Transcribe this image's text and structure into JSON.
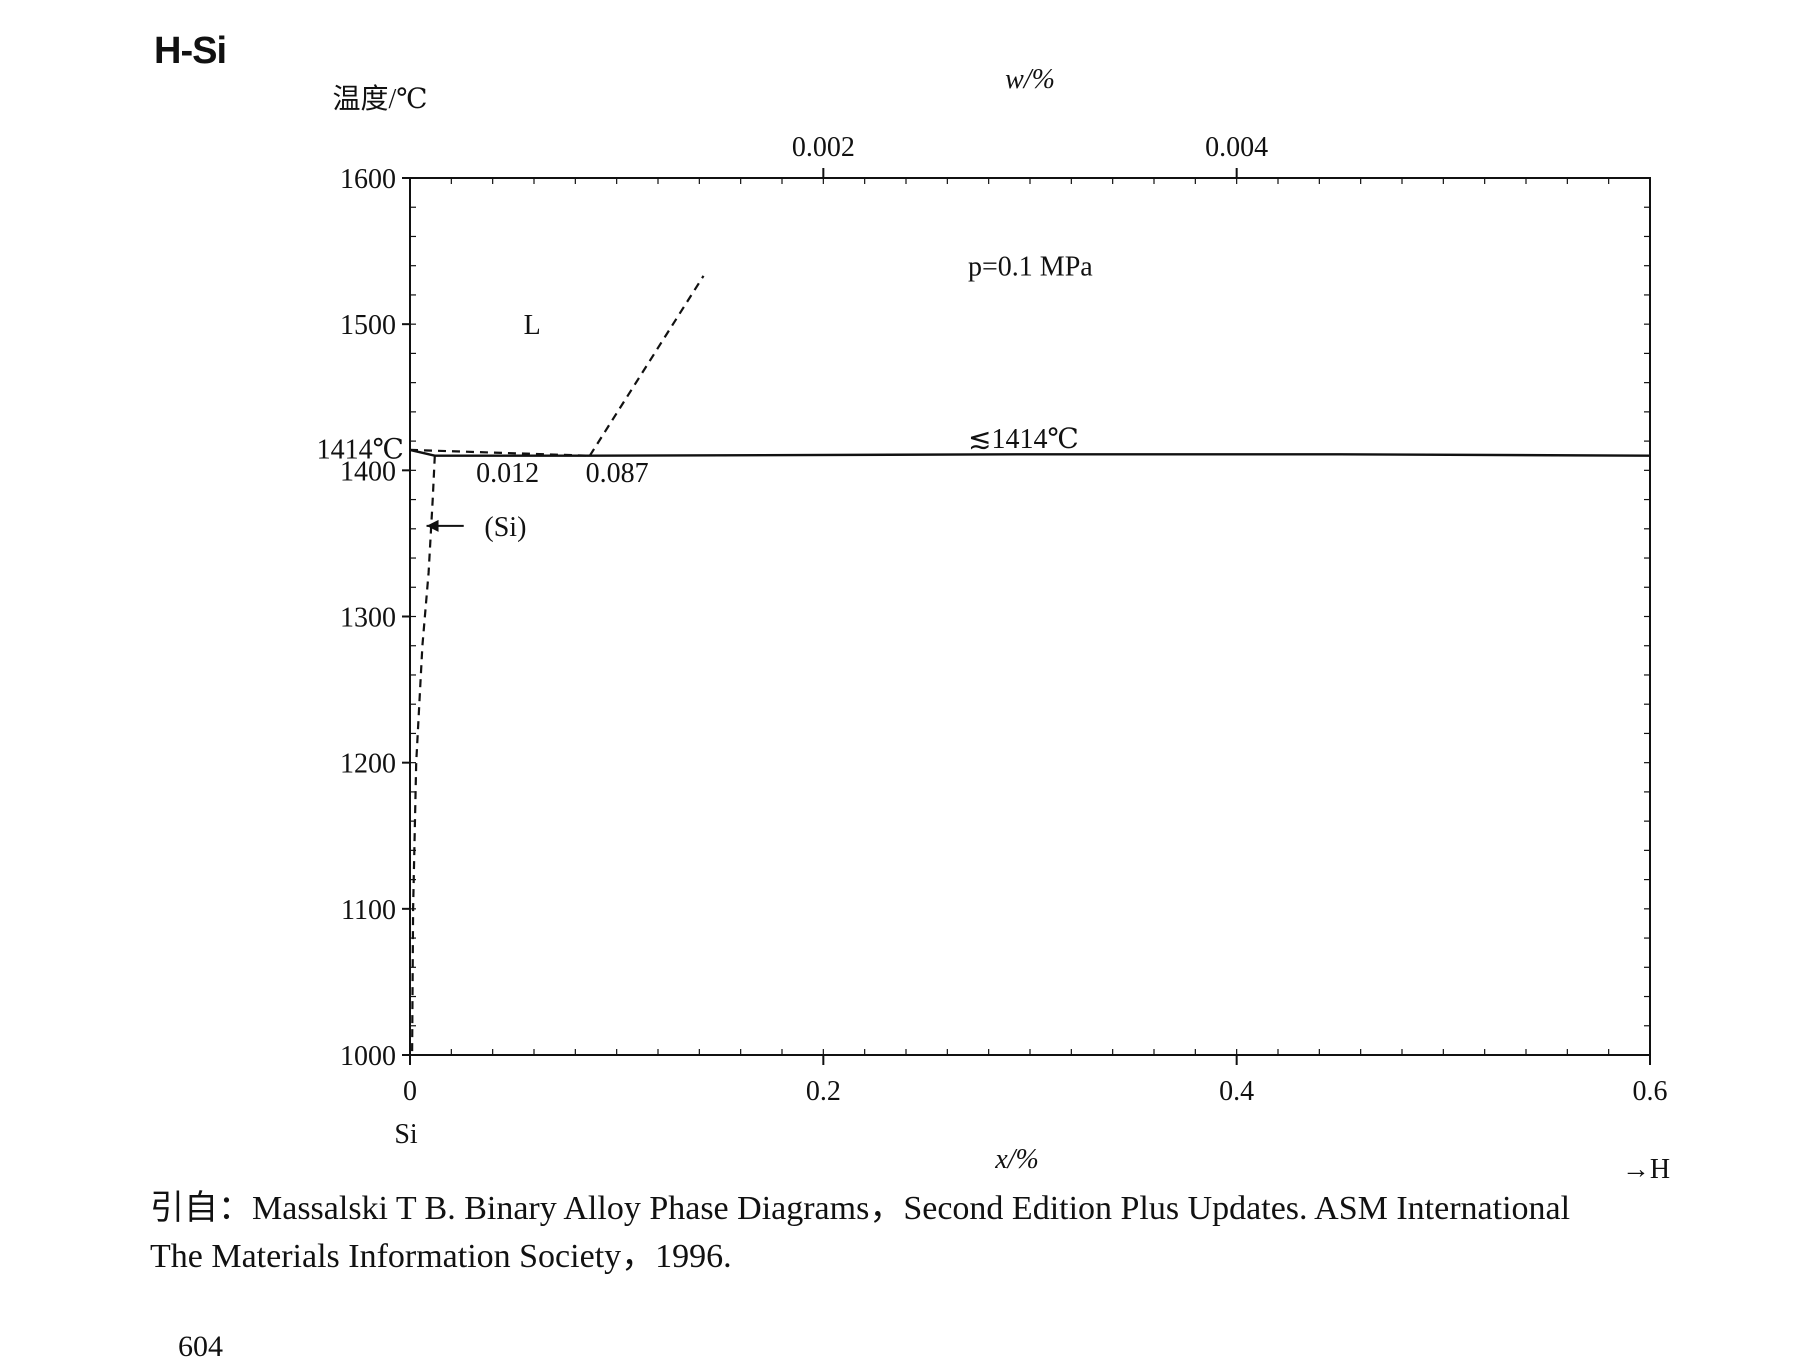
{
  "title": "H-Si",
  "chart_data": {
    "type": "line",
    "title": "H-Si",
    "ylabel": "温度/℃",
    "xlabel": "x/%",
    "top_xlabel": "w/%",
    "xlim": [
      0,
      0.6
    ],
    "ylim": [
      1000,
      1600
    ],
    "x_ticks": [
      0,
      0.2,
      0.4,
      0.6
    ],
    "x_tick_labels": [
      "0",
      "0.2",
      "0.4",
      "0.6"
    ],
    "y_ticks": [
      1000,
      1100,
      1200,
      1300,
      1400,
      1500,
      1600
    ],
    "y_tick_labels": [
      "1000",
      "1100",
      "1200",
      "1300",
      "1400",
      "1500",
      "1600"
    ],
    "top_ticks": [
      0.002,
      0.004
    ],
    "top_tick_labels": [
      "0.002",
      "0.004"
    ],
    "top_tick_x_positions": [
      0.2,
      0.4
    ],
    "left_component": "Si",
    "right_component": "→H",
    "grid": false,
    "series": [
      {
        "style": "solid",
        "x": [
          0,
          0.012,
          0.087,
          0.3,
          0.45,
          0.6
        ],
        "y": [
          1414,
          1410,
          1410,
          1411,
          1411,
          1410
        ]
      },
      {
        "style": "dashed",
        "x": [
          0,
          0.087
        ],
        "y": [
          1414,
          1410
        ]
      },
      {
        "style": "dashed",
        "x": [
          0.087,
          0.142
        ],
        "y": [
          1410,
          1533
        ]
      },
      {
        "style": "dashed",
        "x": [
          0.012,
          0.011,
          0.009,
          0.006,
          0.003,
          0.0015,
          0.001
        ],
        "y": [
          1410,
          1380,
          1330,
          1280,
          1200,
          1100,
          1000
        ]
      }
    ],
    "annotations": [
      {
        "text": "L",
        "x": 0.055,
        "y": 1500
      },
      {
        "text": "p=0.1 MPa",
        "x": 0.27,
        "y": 1540
      },
      {
        "text": "≲1414℃",
        "x": 0.27,
        "y": 1422
      },
      {
        "text": "1414℃",
        "x": -0.03,
        "y": 1415
      },
      {
        "text": "0.012",
        "x": 0.032,
        "y": 1399
      },
      {
        "text": "0.087",
        "x": 0.085,
        "y": 1399
      },
      {
        "text": "(Si)",
        "x": 0.036,
        "y": 1362
      }
    ]
  },
  "citation": {
    "line1": "引自：Massalski T B. Binary Alloy Phase Diagrams，Second Edition Plus Updates. ASM International",
    "line2": "The Materials Information Society，1996."
  },
  "page_number": "604"
}
